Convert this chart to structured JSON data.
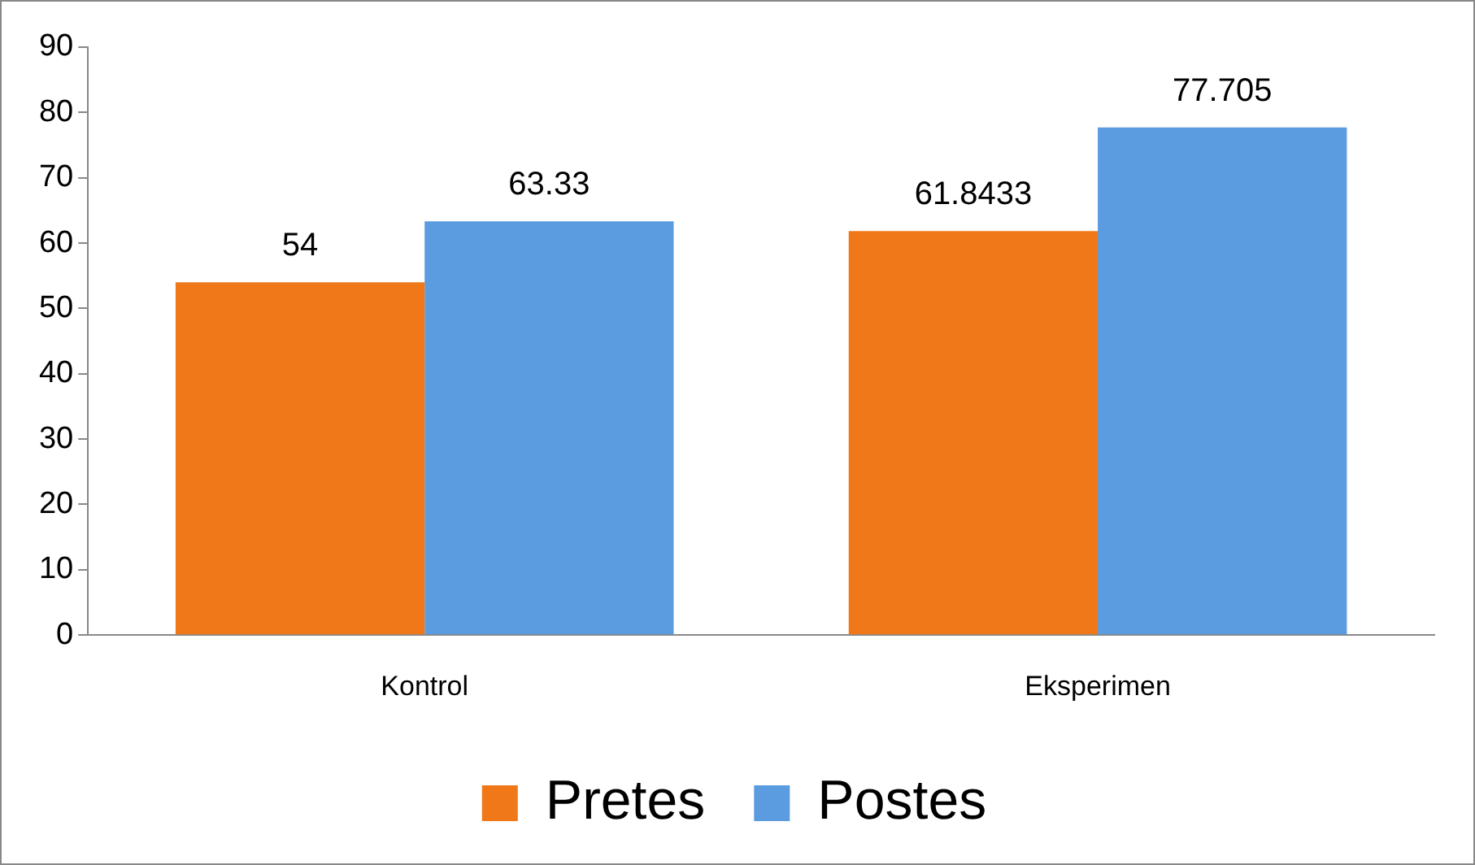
{
  "chart_data": {
    "type": "bar",
    "categories": [
      "Kontrol",
      "Eksperimen"
    ],
    "series": [
      {
        "name": "Pretes",
        "color": "#f07818",
        "values": [
          54,
          61.8433
        ]
      },
      {
        "name": "Postes",
        "color": "#5b9be0",
        "values": [
          63.33,
          77.705
        ]
      }
    ],
    "ylim": [
      0,
      90
    ],
    "yticks": [
      0,
      10,
      20,
      30,
      40,
      50,
      60,
      70,
      80,
      90
    ],
    "data_labels": true,
    "legend": "bottom"
  }
}
